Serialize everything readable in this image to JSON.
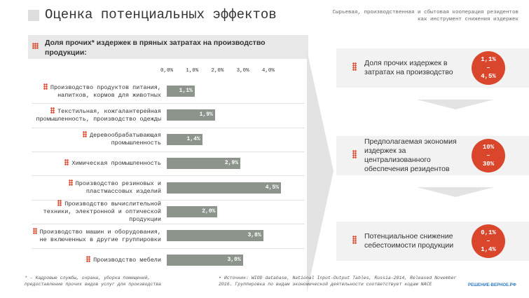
{
  "header": {
    "title": "Оценка потенциальных эффектов",
    "subtitle": "Сырьевая, производственная и сбытовая кооперация резидентов как инструмент снижения издержек"
  },
  "chart_data": {
    "type": "bar",
    "orientation": "horizontal",
    "title": "Доля прочих* издержек в пряных затратах на производство продукции:",
    "categories": [
      "Производство продуктов питания, напитков, кормов для животных",
      "Текстильная, кожгалантерейная промышленность, производство одежды",
      "Деревообрабатывающая промышленность",
      "Химическая промышленность",
      "Производство резиновых и пластмассовых изделий",
      "Производство вычислительной техники, электронной и оптической продукции",
      "Производство машин и оборудования, не включенных в другие группировки",
      "Производство мебели"
    ],
    "values": [
      1.1,
      1.9,
      1.4,
      2.9,
      4.5,
      2.0,
      3.8,
      3.0
    ],
    "value_labels": [
      "1,1%",
      "1,9%",
      "1,4%",
      "2,9%",
      "4,5%",
      "2,0%",
      "3,8%",
      "3,0%"
    ],
    "color": "#8c948c",
    "xlim": [
      0,
      4.5
    ],
    "xticks": [
      {
        "value": 0,
        "label": "0,0%"
      },
      {
        "value": 1,
        "label": "1,0%"
      },
      {
        "value": 2,
        "label": "2,0%"
      },
      {
        "value": 3,
        "label": "3,0%"
      },
      {
        "value": 4,
        "label": "4,0%"
      }
    ]
  },
  "effects": [
    {
      "label": "Доля прочих издержек в затратах на производство",
      "from": "1,1%",
      "to": "4,5%"
    },
    {
      "label": "Предполагаемая экономия издержек за централизованного обеспечения резидентов",
      "from": "10%",
      "to": "30%"
    },
    {
      "label": "Потенциальное снижение себестоимости продукции",
      "from": "0,1%",
      "to": "1,4%"
    }
  ],
  "footnotes": {
    "left": "* - Кадровые службы, охрана, уборка помещений, предоставление прочих видов услуг для производства",
    "right": "Источник: WIOD database, National Input-Output Tables, Russia-2014, Released November 2016. Группировка по видам экономической деятельности соответствует кодам NACE",
    "logo": "РЕШЕНИЕ-ВЕРНОЕ.РФ"
  }
}
